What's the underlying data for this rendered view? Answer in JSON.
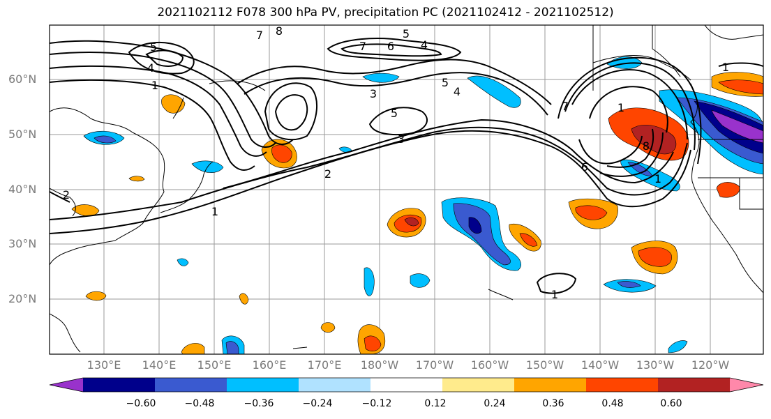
{
  "title": "2021102112 F078 300 hPa PV, precipitation PC (2021102412 - 2021102512)",
  "lat_labels": [
    "60°N",
    "50°N",
    "40°N",
    "30°N",
    "20°N"
  ],
  "lon_labels": [
    "130°E",
    "140°E",
    "150°E",
    "160°E",
    "170°E",
    "180°W",
    "170°W",
    "160°W",
    "150°W",
    "140°W",
    "130°W",
    "120°W"
  ],
  "colorbar": {
    "tick_labels": [
      "−0.60",
      "−0.48",
      "−0.36",
      "−0.24",
      "−0.12",
      "0.12",
      "0.24",
      "0.36",
      "0.48",
      "0.60"
    ],
    "colors": [
      "#9932cc",
      "#00008b",
      "#3a5ad0",
      "#00bfff",
      "#b0e2ff",
      "#ffffff",
      "#ffeb8c",
      "#ffa500",
      "#ff4500",
      "#b22222",
      "#ff88aa"
    ]
  },
  "contour_labels": [
    "5",
    "4",
    "1",
    "7",
    "8",
    "7",
    "6",
    "5",
    "4",
    "3",
    "5",
    "3",
    "2",
    "1",
    "5",
    "4",
    "7",
    "6",
    "1",
    "8",
    "1",
    "1",
    "2",
    "1"
  ],
  "pv_contour_levels": [
    1,
    2,
    3,
    4,
    5,
    6,
    7,
    8
  ]
}
